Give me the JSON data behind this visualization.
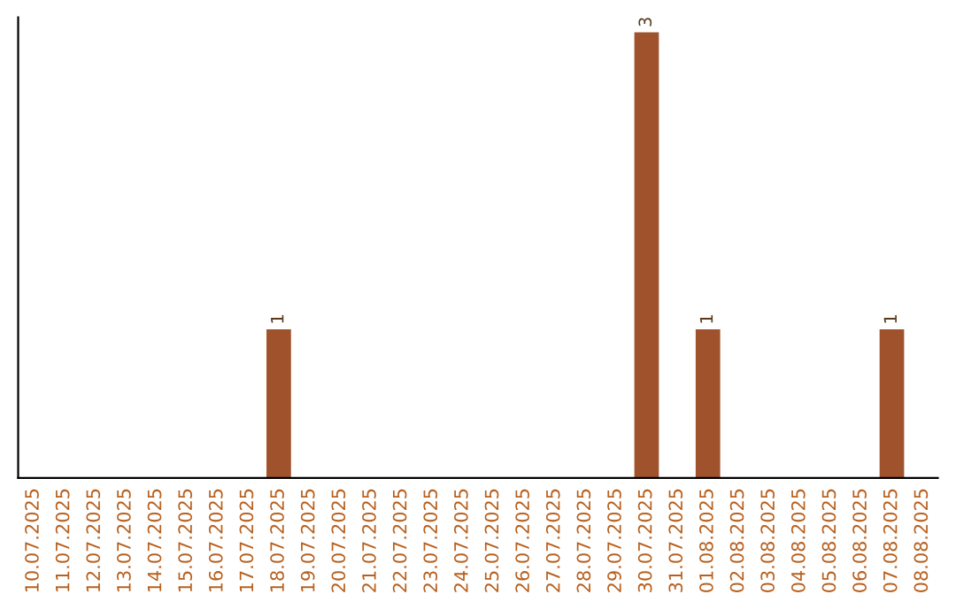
{
  "chart_data": {
    "type": "bar",
    "categories": [
      "10.07.2025",
      "11.07.2025",
      "12.07.2025",
      "13.07.2025",
      "14.07.2025",
      "15.07.2025",
      "16.07.2025",
      "17.07.2025",
      "18.07.2025",
      "19.07.2025",
      "20.07.2025",
      "21.07.2025",
      "22.07.2025",
      "23.07.2025",
      "24.07.2025",
      "25.07.2025",
      "26.07.2025",
      "27.07.2025",
      "28.07.2025",
      "29.07.2025",
      "30.07.2025",
      "31.07.2025",
      "01.08.2025",
      "02.08.2025",
      "03.08.2025",
      "04.08.2025",
      "05.08.2025",
      "06.08.2025",
      "07.08.2025",
      "08.08.2025"
    ],
    "values": [
      0,
      0,
      0,
      0,
      0,
      0,
      0,
      0,
      1,
      0,
      0,
      0,
      0,
      0,
      0,
      0,
      0,
      0,
      0,
      0,
      3,
      0,
      1,
      0,
      0,
      0,
      0,
      0,
      1,
      0
    ],
    "color": "#a0522d",
    "ylim": [
      0,
      3.1
    ],
    "value_labels": [
      null,
      null,
      null,
      null,
      null,
      null,
      null,
      null,
      "1",
      null,
      null,
      null,
      null,
      null,
      null,
      null,
      null,
      null,
      null,
      null,
      "3",
      null,
      "1",
      null,
      null,
      null,
      null,
      null,
      "1",
      null
    ],
    "grid": false,
    "legend": false,
    "tick_labels": "x"
  }
}
